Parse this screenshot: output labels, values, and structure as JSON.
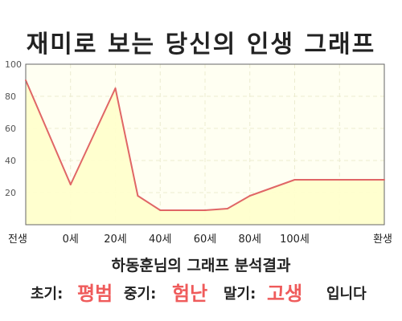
{
  "title": "재미로 보는 당신의 인생 그래프",
  "subtitle": "하동훈님의 그래프 분석결과",
  "result": {
    "early_label": "초기:",
    "early_value": "평범",
    "mid_label": "중기:",
    "mid_value": "험난",
    "late_label": "말기:",
    "late_value": "고생",
    "ending": "입니다"
  },
  "colors": {
    "line": "#e06666",
    "fill": "#ffffcc",
    "highlight": "#ef5b5b"
  },
  "chart_data": {
    "type": "area",
    "title": "재미로 보는 당신의 인생 그래프",
    "xlabel": "",
    "ylabel": "",
    "ylim": [
      0,
      100
    ],
    "yticks": [
      20,
      40,
      60,
      80,
      100
    ],
    "categories": [
      "전생",
      "0세",
      "20세",
      "40세",
      "60세",
      "80세",
      "100세",
      "환생"
    ],
    "grid": true,
    "x": [
      -1,
      0,
      1,
      1.5,
      2,
      3,
      3.5,
      4,
      5,
      6,
      7
    ],
    "values": [
      90,
      25,
      85,
      18,
      9,
      9,
      10,
      18,
      28,
      28,
      28
    ]
  }
}
